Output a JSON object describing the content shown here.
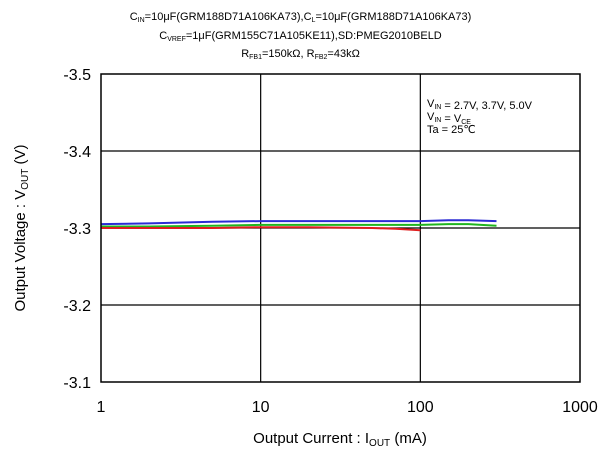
{
  "header": {
    "line1": {
      "cin_sym": "C",
      "cin_sub": "IN",
      "cin_val": "=10μF(GRM188D71A106KA73),",
      "cl_sym": "C",
      "cl_sub": "L",
      "cl_val": "=10μF(GRM188D71A106KA73)"
    },
    "line2": {
      "cv_sym": "C",
      "cv_sub": "VREF",
      "cv_val": "=1μF(GRM155C71A105KE11),SD:PMEG2010BELD"
    },
    "line3": {
      "r1_sym": "R",
      "r1_sub": "FB1",
      "r1_val": "=150kΩ,  ",
      "r2_sym": "R",
      "r2_sub": "FB2",
      "r2_val": "=43kΩ"
    }
  },
  "chart_data": {
    "type": "line",
    "x_scale": "log",
    "xlim": [
      1,
      1000
    ],
    "ylim": [
      -3.5,
      -3.1
    ],
    "x_ticks": [
      1,
      10,
      100,
      1000
    ],
    "x_tick_labels": [
      "1",
      "10",
      "100",
      "1000"
    ],
    "y_ticks": [
      -3.5,
      -3.4,
      -3.3,
      -3.2,
      -3.1
    ],
    "y_tick_labels": [
      "-3.5",
      "-3.4",
      "-3.3",
      "-3.2",
      "-3.1"
    ],
    "xlabel": {
      "main": "Output Current : I",
      "sub": "OUT",
      "unit": "  (mA)"
    },
    "ylabel": {
      "main": "Output Voltage : V",
      "sub": "OUT",
      "unit": " (V)"
    },
    "grid": true,
    "annotations": [
      {
        "main": "V",
        "sub": "IN",
        "rest": " = 2.7V,  3.7V,  5.0V"
      },
      {
        "main": "V",
        "sub": "IN",
        "rest": " = V",
        "sub2": "CE"
      },
      {
        "main": "Ta = 25",
        "rest": "℃"
      }
    ],
    "series": [
      {
        "color": "#2b2bd4",
        "x": [
          1,
          2,
          5,
          10,
          20,
          50,
          100,
          150,
          200,
          300
        ],
        "y": [
          -3.305,
          -3.306,
          -3.308,
          -3.309,
          -3.309,
          -3.309,
          -3.309,
          -3.31,
          -3.31,
          -3.309
        ]
      },
      {
        "color": "#1fb51f",
        "x": [
          1,
          2,
          5,
          10,
          20,
          50,
          100,
          150,
          200,
          300
        ],
        "y": [
          -3.302,
          -3.302,
          -3.303,
          -3.304,
          -3.304,
          -3.304,
          -3.304,
          -3.305,
          -3.305,
          -3.303
        ]
      },
      {
        "color": "#e01e1e",
        "x": [
          1,
          2,
          5,
          10,
          20,
          50,
          70,
          100
        ],
        "y": [
          -3.3,
          -3.3,
          -3.3,
          -3.301,
          -3.301,
          -3.3,
          -3.299,
          -3.297
        ]
      }
    ]
  }
}
